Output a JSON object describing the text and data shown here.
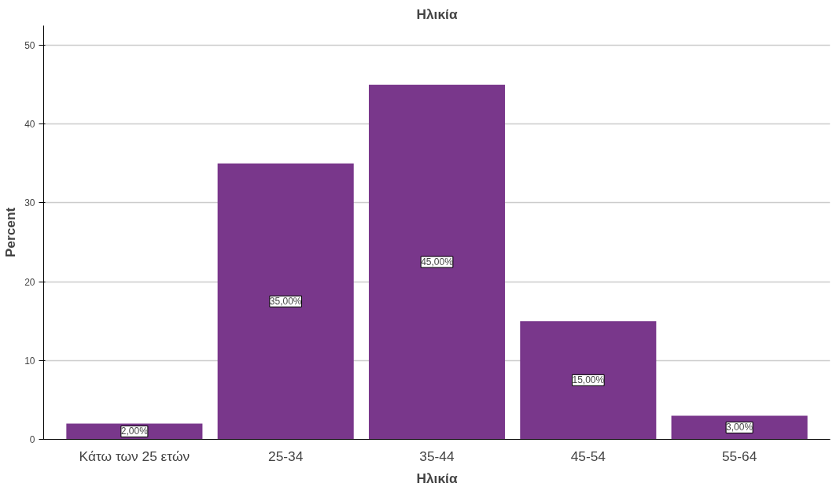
{
  "chart_data": {
    "type": "bar",
    "title": "Ηλικία",
    "xlabel": "Ηλικία",
    "ylabel": "Percent",
    "categories": [
      "Κάτω των 25 ετών",
      "25-34",
      "35-44",
      "45-54",
      "55-64"
    ],
    "values": [
      2,
      35,
      45,
      15,
      3
    ],
    "value_labels": [
      "2,00%",
      "35,00%",
      "45,00%",
      "15,00%",
      "3,00%"
    ],
    "color": "#79378b",
    "ylim": [
      0,
      52.5
    ],
    "yticks": [
      0,
      10,
      20,
      30,
      40,
      50
    ],
    "grid": "y"
  }
}
